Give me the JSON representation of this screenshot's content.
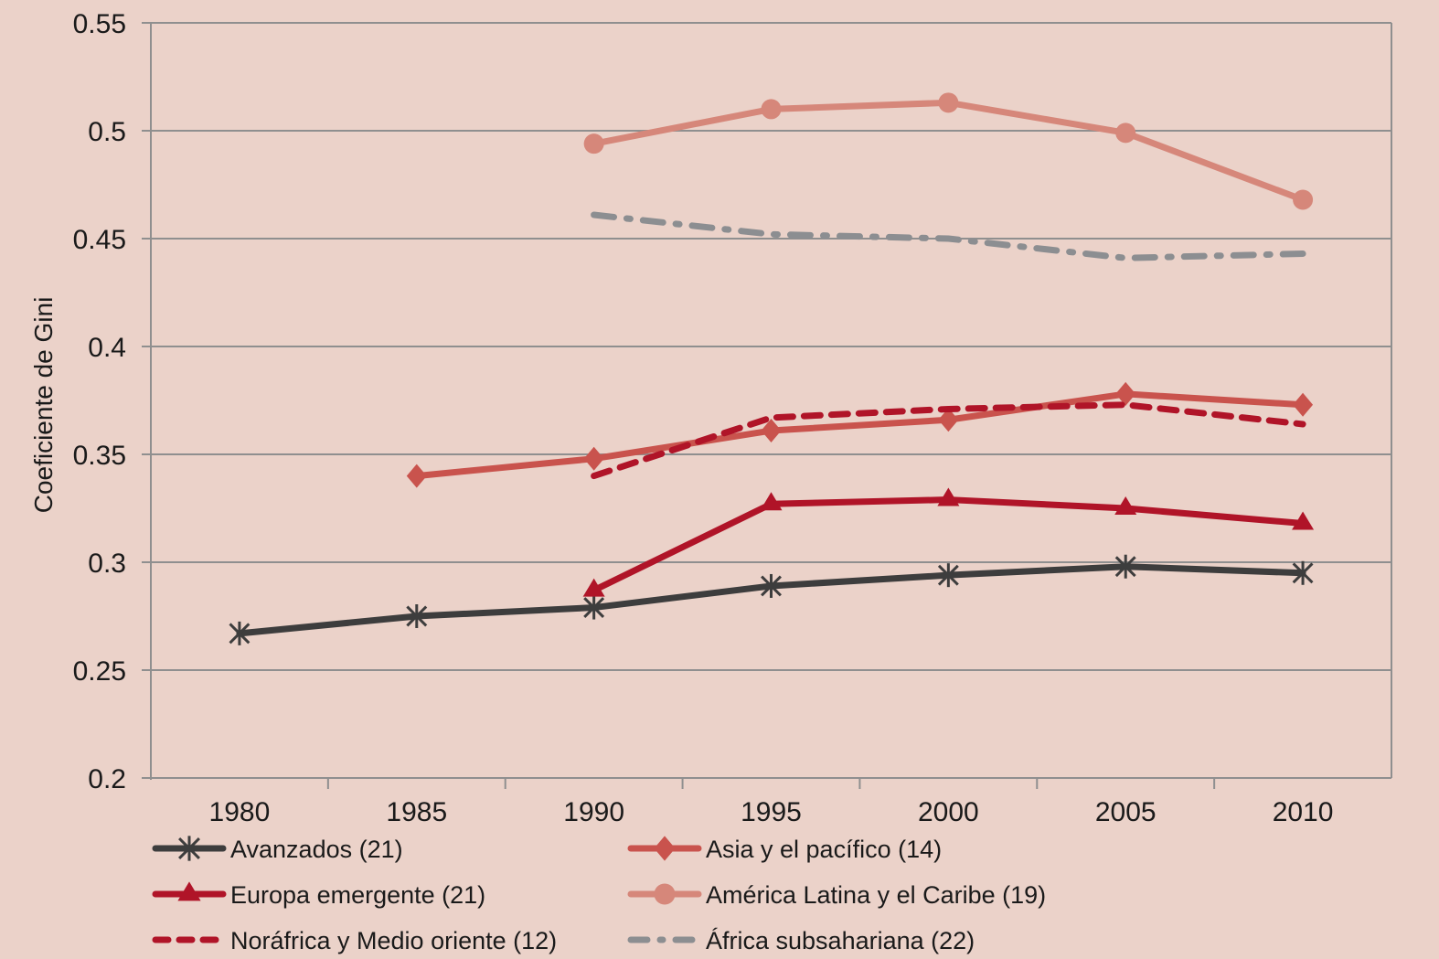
{
  "chart_data": {
    "type": "line",
    "title": "",
    "xlabel": "",
    "ylabel": "Coeficiente de Gini",
    "categories": [
      "1980",
      "1985",
      "1990",
      "1995",
      "2000",
      "2005",
      "2010"
    ],
    "ylim": [
      0.2,
      0.55
    ],
    "yticks": [
      "0.2",
      "0.25",
      "0.3",
      "0.35",
      "0.4",
      "0.45",
      "0.5",
      "0.55"
    ],
    "grid": true,
    "legend_position": "bottom",
    "series": [
      {
        "name": "Avanzados (21)",
        "color": "#3d3d3d",
        "marker": "asterisk",
        "dash": "solid",
        "values": [
          0.267,
          0.275,
          0.279,
          0.289,
          0.294,
          0.298,
          0.295
        ]
      },
      {
        "name": "Asia y el pacífico (14)",
        "color": "#c9534d",
        "marker": "diamond",
        "dash": "solid",
        "values": [
          null,
          0.34,
          0.348,
          0.361,
          0.366,
          0.378,
          0.373
        ]
      },
      {
        "name": "Europa emergente (21)",
        "color": "#b01428",
        "marker": "triangle",
        "dash": "solid",
        "values": [
          null,
          null,
          0.287,
          0.327,
          0.329,
          0.325,
          0.318
        ]
      },
      {
        "name": "América Latina y el Caribe (19)",
        "color": "#d6877a",
        "marker": "circle",
        "dash": "solid",
        "values": [
          null,
          null,
          0.494,
          0.51,
          0.513,
          0.499,
          0.468
        ]
      },
      {
        "name": "Noráfrica y Medio oriente (12)",
        "color": "#b01428",
        "marker": "none",
        "dash": "dashed",
        "values": [
          null,
          null,
          0.34,
          0.367,
          0.371,
          0.373,
          0.364
        ]
      },
      {
        "name": "África subsahariana (22)",
        "color": "#8c8e91",
        "marker": "none",
        "dash": "dashdot",
        "values": [
          null,
          null,
          0.461,
          0.452,
          0.45,
          0.441,
          0.443
        ]
      }
    ]
  },
  "colors": {
    "background": "#ebd2c9",
    "grid": "#8f8f8f"
  }
}
